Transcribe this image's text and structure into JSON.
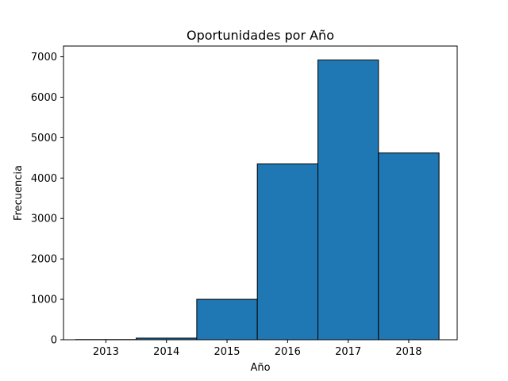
{
  "chart_data": {
    "type": "bar",
    "title": "Oportunidades por Año",
    "xlabel": "Año",
    "ylabel": "Frecuencia",
    "categories": [
      "2013",
      "2014",
      "2015",
      "2016",
      "2017",
      "2018"
    ],
    "values": [
      5,
      40,
      1000,
      4350,
      6920,
      4620
    ],
    "ylim": [
      0,
      7266
    ],
    "xlim": [
      2012.3,
      2018.8
    ],
    "yticks": [
      0,
      1000,
      2000,
      3000,
      4000,
      5000,
      6000,
      7000
    ],
    "ytick_labels": [
      "0",
      "1000",
      "2000",
      "3000",
      "4000",
      "5000",
      "6000",
      "7000"
    ],
    "xticks": [
      2013,
      2014,
      2015,
      2016,
      2017,
      2018
    ],
    "xtick_labels": [
      "2013",
      "2014",
      "2015",
      "2016",
      "2017",
      "2018"
    ],
    "bar_color": "#1f77b4",
    "edge_color": "#000000",
    "grid": false,
    "legend": "none"
  }
}
